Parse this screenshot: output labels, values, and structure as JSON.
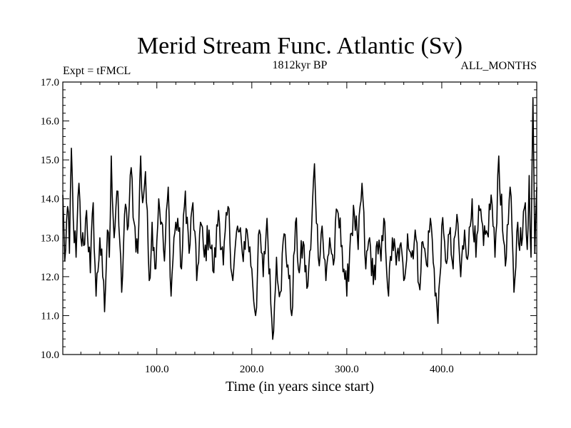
{
  "chart_data": {
    "type": "line",
    "title": "Merid Stream Func. Atlantic (Sv)",
    "subtitle_left": "Expt = tFMCL",
    "subtitle_center": "1812kyr BP",
    "subtitle_right": "ALL_MONTHS",
    "xlabel": "Time (in years since start)",
    "ylabel": "",
    "xlim": [
      1,
      500
    ],
    "ylim": [
      10.0,
      17.0
    ],
    "x_ticks": [
      100,
      200,
      300,
      400
    ],
    "x_tick_labels": [
      "100.0",
      "200.0",
      "300.0",
      "400.0"
    ],
    "y_ticks": [
      10,
      11,
      12,
      13,
      14,
      15,
      16,
      17
    ],
    "y_tick_labels": [
      "10.0",
      "11.0",
      "12.0",
      "13.0",
      "14.0",
      "15.0",
      "16.0",
      "17.0"
    ],
    "grid": false,
    "series": [
      {
        "name": "Merid Stream Func. Atlantic",
        "color": "#000000",
        "anchors": {
          "x": [
            1,
            3,
            6,
            8,
            10,
            12,
            15,
            18,
            20,
            23,
            26,
            30,
            33,
            36,
            40,
            43,
            45,
            48,
            50,
            52,
            55,
            58,
            61,
            63,
            66,
            70,
            73,
            76,
            80,
            83,
            85,
            88,
            92,
            95,
            98,
            102,
            105,
            108,
            112,
            115,
            118,
            122,
            126,
            130,
            134,
            138,
            142,
            146,
            150,
            155,
            160,
            165,
            170,
            175,
            180,
            185,
            190,
            195,
            200,
            204,
            208,
            212,
            216,
            220,
            223,
            226,
            230,
            234,
            238,
            242,
            246,
            250,
            254,
            258,
            262,
            266,
            270,
            274,
            278,
            282,
            286,
            290,
            295,
            300,
            304,
            308,
            312,
            316,
            320,
            324,
            328,
            332,
            336,
            340,
            344,
            348,
            352,
            356,
            360,
            364,
            368,
            372,
            376,
            380,
            384,
            388,
            392,
            396,
            400,
            404,
            408,
            412,
            416,
            420,
            424,
            428,
            432,
            436,
            440,
            444,
            448,
            452,
            456,
            460,
            464,
            468,
            472,
            476,
            480,
            484,
            488,
            490,
            492,
            494,
            496,
            498,
            500
          ],
          "y": [
            14.1,
            12.4,
            13.8,
            12.6,
            15.3,
            13.5,
            12.5,
            14.4,
            13.0,
            12.8,
            13.7,
            12.1,
            13.9,
            11.5,
            13.0,
            12.0,
            11.1,
            13.2,
            12.5,
            15.1,
            13.0,
            14.2,
            12.9,
            11.6,
            13.6,
            13.3,
            14.8,
            13.4,
            12.6,
            15.1,
            13.9,
            14.7,
            11.9,
            13.4,
            12.2,
            14.0,
            13.4,
            12.4,
            14.3,
            11.5,
            13.0,
            13.5,
            12.2,
            14.2,
            12.6,
            13.9,
            11.9,
            13.4,
            12.5,
            13.2,
            12.1,
            13.7,
            12.3,
            13.8,
            11.9,
            13.3,
            12.6,
            13.2,
            12.2,
            11.0,
            13.2,
            12.0,
            13.5,
            11.3,
            10.6,
            12.5,
            11.6,
            13.1,
            12.3,
            11.0,
            13.4,
            12.1,
            12.9,
            11.7,
            12.7,
            14.9,
            12.5,
            13.3,
            11.9,
            13.0,
            12.3,
            13.7,
            12.8,
            11.5,
            13.1,
            13.6,
            12.7,
            14.4,
            12.2,
            13.0,
            11.8,
            12.9,
            12.4,
            13.4,
            11.5,
            13.0,
            12.3,
            12.8,
            11.9,
            13.1,
            12.5,
            13.2,
            11.8,
            12.9,
            12.3,
            13.5,
            12.2,
            10.8,
            13.3,
            12.4,
            13.1,
            12.2,
            13.6,
            12.0,
            13.2,
            12.6,
            14.0,
            12.5,
            13.7,
            12.8,
            13.1,
            14.1,
            12.5,
            15.1,
            13.2,
            12.5,
            14.3,
            11.6,
            13.4,
            12.8,
            13.9,
            12.7,
            14.6,
            12.5,
            16.6,
            12.6,
            14.3
          ]
        }
      }
    ]
  }
}
